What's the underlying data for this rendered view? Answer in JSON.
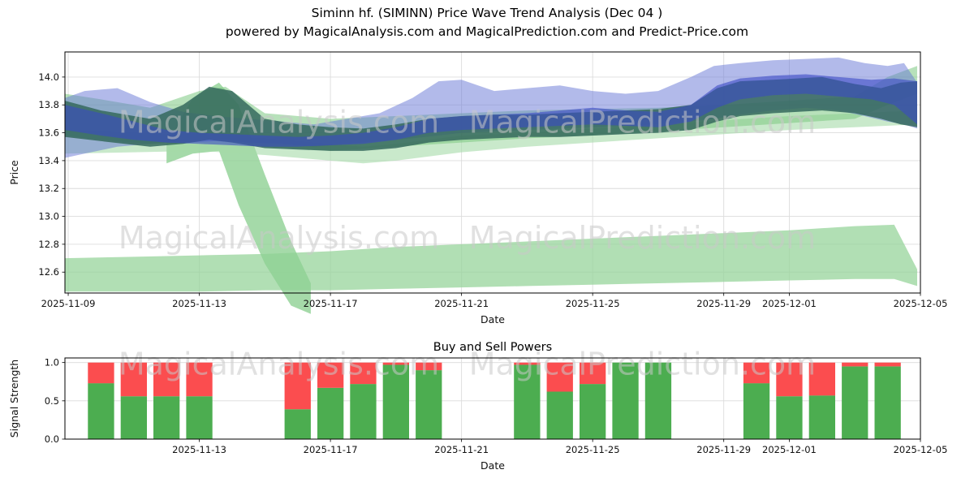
{
  "header": {
    "title": "Siminn hf. (SIMINN) Price Wave Trend Analysis (Dec 04 )",
    "subtitle": "powered by MagicalAnalysis.com and MagicalPrediction.com and Predict-Price.com"
  },
  "watermark": {
    "color": "#c9c9c9"
  },
  "chart_data": [
    {
      "id": "price-wave",
      "type": "area",
      "title": "",
      "xlabel": "Date",
      "ylabel": "Price",
      "x_start_date": "2025-11-08",
      "x_domain_days": [
        0.9,
        27.0
      ],
      "ylim": [
        12.45,
        14.18
      ],
      "grid": true,
      "y_ticks": [
        "12.6",
        "12.8",
        "13.0",
        "13.2",
        "13.4",
        "13.6",
        "13.8",
        "14.0"
      ],
      "x_ticks": [
        {
          "label": "2025-11-09",
          "day": 1
        },
        {
          "label": "2025-11-13",
          "day": 5
        },
        {
          "label": "2025-11-17",
          "day": 9
        },
        {
          "label": "2025-11-21",
          "day": 13
        },
        {
          "label": "2025-11-25",
          "day": 17
        },
        {
          "label": "2025-11-29",
          "day": 21
        },
        {
          "label": "2025-12-01",
          "day": 23
        },
        {
          "label": "2025-12-05",
          "day": 27
        }
      ],
      "watermarks": [
        {
          "text": "MagicalAnalysis.com",
          "fx": 0.25,
          "fy": 0.3
        },
        {
          "text": "MagicalPrediction.com",
          "fx": 0.675,
          "fy": 0.3
        },
        {
          "text": "MagicalAnalysis.com",
          "fx": 0.25,
          "fy": 0.78
        },
        {
          "text": "MagicalPrediction.com",
          "fx": 0.675,
          "fy": 0.78
        }
      ],
      "bands": [
        {
          "name": "lower-forecast-band",
          "color": "#97d49b",
          "opacity": 0.75,
          "x": [
            0.9,
            3,
            5,
            7,
            9,
            11,
            13,
            15,
            17,
            19,
            21,
            23,
            25,
            26.2,
            26.9
          ],
          "upper": [
            12.7,
            12.71,
            12.72,
            12.73,
            12.75,
            12.78,
            12.8,
            12.82,
            12.84,
            12.86,
            12.88,
            12.9,
            12.93,
            12.94,
            12.62
          ],
          "lower": [
            12.46,
            12.46,
            12.46,
            12.47,
            12.47,
            12.48,
            12.49,
            12.5,
            12.51,
            12.52,
            12.53,
            12.54,
            12.55,
            12.55,
            12.5
          ]
        },
        {
          "name": "spike-band",
          "color": "#8fd193",
          "opacity": 0.8,
          "x": [
            4.0,
            4.8,
            5.6,
            6.2,
            7.0,
            7.8,
            8.4
          ],
          "upper": [
            13.52,
            13.85,
            13.96,
            13.8,
            13.3,
            12.82,
            12.52
          ],
          "lower": [
            13.38,
            13.45,
            13.47,
            13.08,
            12.66,
            12.36,
            12.3
          ]
        },
        {
          "name": "mid-green-band",
          "color": "#a5dba8",
          "opacity": 0.6,
          "x": [
            0.9,
            3,
            5,
            7,
            9,
            10,
            11,
            13,
            15,
            17,
            19,
            21,
            23,
            25,
            26.9
          ],
          "upper": [
            13.62,
            13.6,
            13.58,
            13.56,
            13.52,
            13.5,
            13.52,
            13.58,
            13.6,
            13.63,
            13.66,
            13.69,
            13.72,
            13.74,
            13.76
          ],
          "lower": [
            13.45,
            13.46,
            13.47,
            13.44,
            13.4,
            13.38,
            13.4,
            13.46,
            13.5,
            13.53,
            13.56,
            13.59,
            13.62,
            13.64,
            13.66
          ]
        },
        {
          "name": "trend-green-band",
          "color": "#7cc881",
          "opacity": 0.55,
          "x": [
            0.9,
            2,
            3.5,
            5,
            5.8,
            7,
            9,
            11,
            13,
            15,
            17,
            19,
            21,
            23,
            25,
            26,
            26.9
          ],
          "upper": [
            13.88,
            13.84,
            13.78,
            13.9,
            13.93,
            13.74,
            13.7,
            13.72,
            13.74,
            13.76,
            13.77,
            13.78,
            13.8,
            13.83,
            13.86,
            14.0,
            14.08
          ],
          "lower": [
            13.58,
            13.55,
            13.52,
            13.55,
            13.56,
            13.5,
            13.47,
            13.5,
            13.53,
            13.56,
            13.58,
            13.61,
            13.64,
            13.67,
            13.7,
            13.8,
            13.88
          ]
        },
        {
          "name": "blue-outer-band",
          "color": "#6575d6",
          "opacity": 0.5,
          "x": [
            0.9,
            1.5,
            2.5,
            3.5,
            4.5,
            5.5,
            6.5,
            7.5,
            8.5,
            9.5,
            10.5,
            11.5,
            12.3,
            13,
            14,
            15,
            16,
            17,
            18,
            19,
            20,
            20.7,
            21.5,
            22.5,
            23.5,
            24.5,
            25.3,
            26,
            26.5,
            26.9
          ],
          "upper": [
            13.85,
            13.9,
            13.92,
            13.82,
            13.75,
            13.72,
            13.7,
            13.68,
            13.66,
            13.7,
            13.74,
            13.85,
            13.97,
            13.98,
            13.9,
            13.92,
            13.94,
            13.9,
            13.88,
            13.9,
            14.0,
            14.08,
            14.1,
            14.12,
            14.13,
            14.14,
            14.1,
            14.08,
            14.1,
            13.96
          ],
          "lower": [
            13.42,
            13.45,
            13.5,
            13.52,
            13.53,
            13.54,
            13.53,
            13.52,
            13.5,
            13.52,
            13.54,
            13.56,
            13.58,
            13.6,
            13.61,
            13.62,
            13.63,
            13.64,
            13.65,
            13.66,
            13.68,
            13.7,
            13.73,
            13.76,
            13.78,
            13.76,
            13.72,
            13.68,
            13.66,
            13.63
          ]
        },
        {
          "name": "teal-band",
          "color": "#35685d",
          "opacity": 0.85,
          "x": [
            0.9,
            2,
            3.5,
            4.5,
            5.3,
            6,
            7,
            8,
            9,
            10,
            11,
            12,
            13,
            14,
            15,
            16,
            17,
            18,
            19,
            20,
            20.8,
            21.5,
            22.5,
            24,
            25,
            25.8,
            26.4,
            26.9
          ],
          "upper": [
            13.83,
            13.76,
            13.7,
            13.8,
            13.93,
            13.9,
            13.7,
            13.66,
            13.64,
            13.63,
            13.66,
            13.7,
            13.72,
            13.73,
            13.73,
            13.74,
            13.75,
            13.76,
            13.77,
            13.8,
            13.92,
            13.97,
            13.98,
            14.0,
            13.95,
            13.92,
            13.96,
            13.97
          ],
          "lower": [
            13.57,
            13.54,
            13.5,
            13.52,
            13.55,
            13.53,
            13.49,
            13.48,
            13.47,
            13.47,
            13.49,
            13.53,
            13.55,
            13.56,
            13.57,
            13.57,
            13.58,
            13.59,
            13.6,
            13.62,
            13.68,
            13.72,
            13.74,
            13.76,
            13.74,
            13.7,
            13.66,
            13.64
          ]
        },
        {
          "name": "blue-core-band",
          "color": "#3a49c4",
          "opacity": 0.6,
          "x": [
            0.9,
            2,
            3,
            4,
            5,
            6,
            7,
            8,
            9,
            10,
            11,
            12,
            13,
            14,
            15,
            16,
            17,
            18,
            19,
            20,
            20.8,
            21.5,
            22.5,
            23.5,
            24.5,
            25.5,
            26.2,
            26.9
          ],
          "upper": [
            13.8,
            13.74,
            13.68,
            13.62,
            13.6,
            13.59,
            13.58,
            13.57,
            13.58,
            13.6,
            13.64,
            13.7,
            13.72,
            13.73,
            13.74,
            13.76,
            13.78,
            13.76,
            13.75,
            13.8,
            13.94,
            13.99,
            14.01,
            14.02,
            14.0,
            13.98,
            13.99,
            13.97
          ],
          "lower": [
            13.62,
            13.58,
            13.55,
            13.53,
            13.52,
            13.51,
            13.5,
            13.5,
            13.51,
            13.52,
            13.55,
            13.6,
            13.62,
            13.63,
            13.64,
            13.65,
            13.66,
            13.65,
            13.64,
            13.68,
            13.78,
            13.84,
            13.87,
            13.88,
            13.86,
            13.84,
            13.8,
            13.66
          ]
        }
      ]
    },
    {
      "id": "buy-sell-powers",
      "type": "bar",
      "title": "Buy and Sell Powers",
      "xlabel": "Date",
      "ylabel": "Signal Strength",
      "x_start_date": "2025-11-08",
      "x_domain_days": [
        0.9,
        27.0
      ],
      "ylim": [
        0,
        1.06
      ],
      "grid": true,
      "y_ticks": [
        "0.0",
        "0.5",
        "1.0"
      ],
      "x_ticks": [
        {
          "label": "2025-11-13",
          "day": 5
        },
        {
          "label": "2025-11-17",
          "day": 9
        },
        {
          "label": "2025-11-21",
          "day": 13
        },
        {
          "label": "2025-11-25",
          "day": 17
        },
        {
          "label": "2025-11-29",
          "day": 21
        },
        {
          "label": "2025-12-01",
          "day": 23
        },
        {
          "label": "2025-12-05",
          "day": 27
        }
      ],
      "bar_width_days": 0.8,
      "series_colors": {
        "buy": "#4cad50",
        "sell": "#fb4d4f"
      },
      "watermarks": [
        {
          "text": "MagicalAnalysis.com",
          "fx": 0.25,
          "fy": 0.1
        },
        {
          "text": "MagicalPrediction.com",
          "fx": 0.675,
          "fy": 0.1
        }
      ],
      "bars": [
        {
          "date": "2025-11-10",
          "day": 2,
          "buy": 0.73,
          "sell": 0.27
        },
        {
          "date": "2025-11-11",
          "day": 3,
          "buy": 0.56,
          "sell": 0.44
        },
        {
          "date": "2025-11-12",
          "day": 4,
          "buy": 0.56,
          "sell": 0.44
        },
        {
          "date": "2025-11-13",
          "day": 5,
          "buy": 0.56,
          "sell": 0.44
        },
        {
          "date": "2025-11-16",
          "day": 8,
          "buy": 0.39,
          "sell": 0.61
        },
        {
          "date": "2025-11-17",
          "day": 9,
          "buy": 0.67,
          "sell": 0.33
        },
        {
          "date": "2025-11-18",
          "day": 10,
          "buy": 0.72,
          "sell": 0.28
        },
        {
          "date": "2025-11-19",
          "day": 11,
          "buy": 0.97,
          "sell": 0.03
        },
        {
          "date": "2025-11-20",
          "day": 12,
          "buy": 0.9,
          "sell": 0.1
        },
        {
          "date": "2025-11-23",
          "day": 15,
          "buy": 0.97,
          "sell": 0.03
        },
        {
          "date": "2025-11-24",
          "day": 16,
          "buy": 0.62,
          "sell": 0.38
        },
        {
          "date": "2025-11-25",
          "day": 17,
          "buy": 0.72,
          "sell": 0.28
        },
        {
          "date": "2025-11-26",
          "day": 18,
          "buy": 1.0,
          "sell": 0.0
        },
        {
          "date": "2025-11-27",
          "day": 19,
          "buy": 1.0,
          "sell": 0.0
        },
        {
          "date": "2025-11-30",
          "day": 22,
          "buy": 0.73,
          "sell": 0.27
        },
        {
          "date": "2025-12-01",
          "day": 23,
          "buy": 0.56,
          "sell": 0.44
        },
        {
          "date": "2025-12-02",
          "day": 24,
          "buy": 0.57,
          "sell": 0.43
        },
        {
          "date": "2025-12-03",
          "day": 25,
          "buy": 0.95,
          "sell": 0.05
        },
        {
          "date": "2025-12-04",
          "day": 26,
          "buy": 0.95,
          "sell": 0.05
        }
      ]
    }
  ]
}
